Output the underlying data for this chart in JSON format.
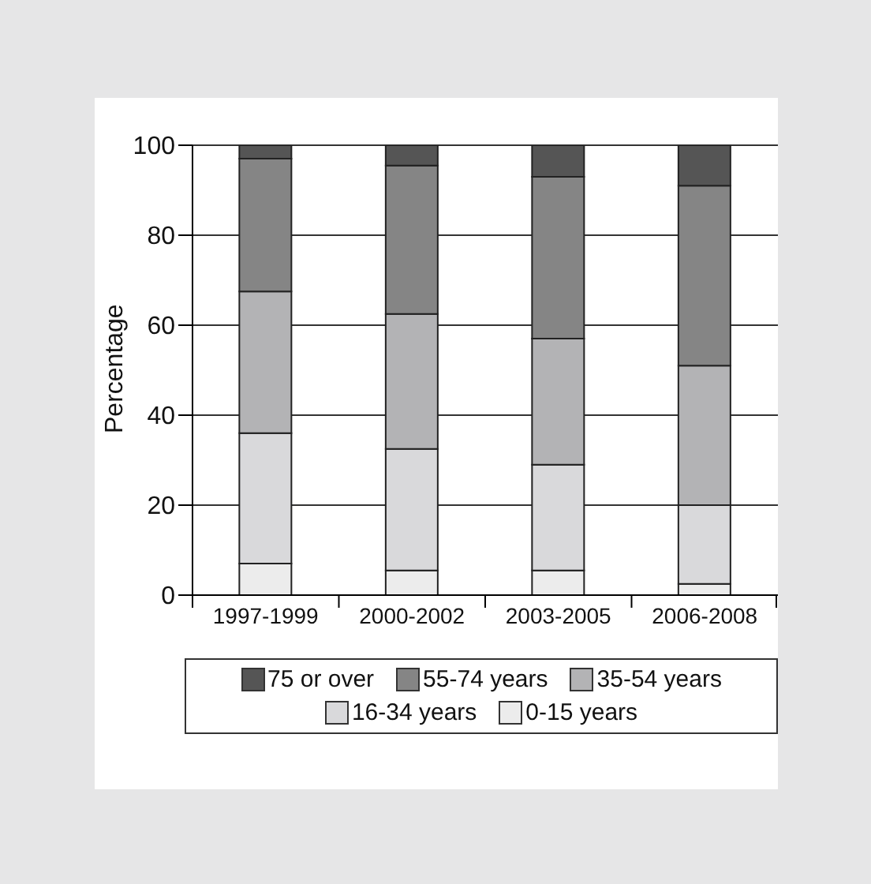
{
  "chart_data": {
    "type": "bar",
    "stacked": true,
    "ylabel": "Percentage",
    "categories": [
      "1997-1999",
      "2000-2002",
      "2003-2005",
      "2006-2008"
    ],
    "series": [
      {
        "name": "0-15 years",
        "color": "#ececec",
        "values": [
          7,
          5.5,
          5.5,
          2.5
        ]
      },
      {
        "name": "16-34 years",
        "color": "#d9d9db",
        "values": [
          29,
          27,
          23.5,
          17.5
        ]
      },
      {
        "name": "35-54 years",
        "color": "#b3b3b5",
        "values": [
          31.5,
          30,
          28,
          31
        ]
      },
      {
        "name": "55-74 years",
        "color": "#858585",
        "values": [
          29.5,
          33,
          36,
          40
        ]
      },
      {
        "name": "75 or over",
        "color": "#555555",
        "values": [
          3,
          4.5,
          7,
          9
        ]
      }
    ],
    "ylim": [
      0,
      100
    ],
    "yticks": [
      0,
      20,
      40,
      60,
      80,
      100
    ],
    "grid": "y",
    "legend": "bottom"
  }
}
